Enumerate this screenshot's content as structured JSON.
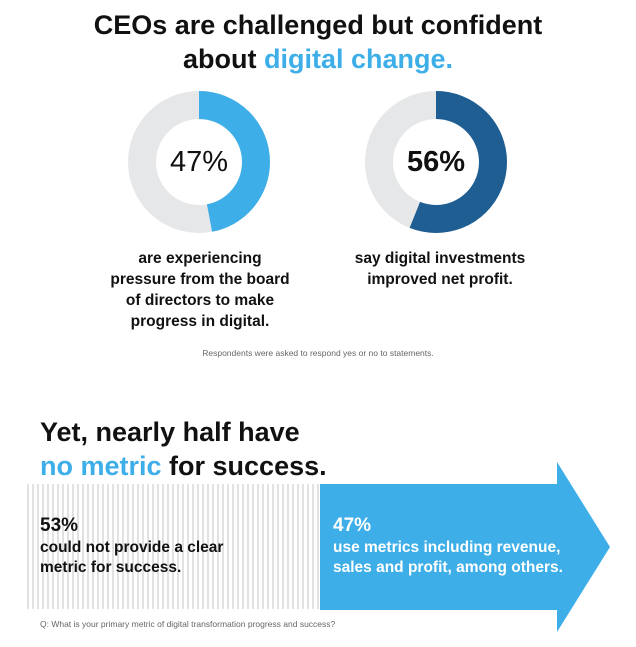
{
  "header": {
    "title_line1": "CEOs are challenged but confident",
    "title_line2_prefix": "about ",
    "title_line2_accent": "digital change."
  },
  "donuts": [
    {
      "percent_label": "47%",
      "value": 47,
      "caption": [
        "are experiencing",
        "pressure from the board",
        "of directors to make",
        "progress in digital."
      ]
    },
    {
      "percent_label": "56%",
      "value": 56,
      "caption": [
        "say digital investments",
        "improved net profit."
      ]
    }
  ],
  "footnote1": "Respondents were asked to respond yes or no to statements.",
  "section2": {
    "title_line1": "Yet, nearly half have",
    "title_line2_accent": "no metric",
    "title_line2_suffix": " for success."
  },
  "bar": {
    "left": {
      "percent_label": "53%",
      "value": 53,
      "text": [
        "could not provide a clear",
        "metric for success."
      ]
    },
    "right": {
      "percent_label": "47%",
      "value": 47,
      "text": [
        "use metrics including revenue,",
        "sales and profit, among others."
      ]
    }
  },
  "footnote2": "Q: What is your primary metric of digital transformation progress and success?",
  "colors": {
    "accent": "#3eaee8",
    "dark_blue": "#1e5e93",
    "track": "#e6e7e8",
    "stripe": "#e2e2e2"
  },
  "chart_data": [
    {
      "type": "pie",
      "style": "donut",
      "values": [
        47,
        53
      ],
      "labels": [
        "are experiencing pressure from the board of directors to make progress in digital.",
        ""
      ],
      "center_label": "47%"
    },
    {
      "type": "pie",
      "style": "donut",
      "values": [
        56,
        44
      ],
      "labels": [
        "say digital investments improved net profit.",
        ""
      ],
      "center_label": "56%"
    },
    {
      "type": "bar",
      "style": "stacked-horizontal",
      "categories": [
        "could not provide a clear metric for success.",
        "use metrics including revenue, sales and profit, among others."
      ],
      "values": [
        53,
        47
      ]
    }
  ]
}
